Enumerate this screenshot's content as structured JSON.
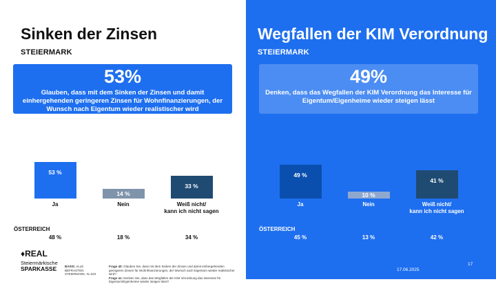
{
  "left": {
    "title": "Sinken der Zinsen",
    "region": "STEIERMARK",
    "callout_value": "53%",
    "callout_text": "Glauben, dass mit dem Sinken der Zinsen und damit einhergehenden geringeren Zinsen für Wohnfinanzierungen, der Wunsch nach Eigentum wieder realistischer wird",
    "oesterreich_label": "ÖSTERREICH"
  },
  "right": {
    "title": "Wegfallen der KIM Verordnung",
    "region": "STEIERMARK",
    "callout_value": "49%",
    "callout_text": "Denken, dass das Wegfallen der KIM Verordnung das Interesse für Eigentum/Eigenheime wieder steigen lässt",
    "oesterreich_label": "ÖSTERREICH"
  },
  "chart_data": [
    {
      "type": "bar",
      "categories": [
        "Ja",
        "Nein",
        "Weiß nicht/\nkann ich nicht sagen"
      ],
      "values": [
        53,
        14,
        33
      ],
      "value_labels": [
        "53 %",
        "14 %",
        "33 %"
      ],
      "colors": [
        "#1e6fef",
        "#7f93ab",
        "#1f4a72"
      ],
      "ylim": [
        0,
        100
      ],
      "comparison_label": "ÖSTERREICH",
      "comparison_values": [
        48,
        18,
        34
      ],
      "comparison_labels": [
        "48 %",
        "18 %",
        "34 %"
      ]
    },
    {
      "type": "bar",
      "categories": [
        "Ja",
        "Nein",
        "Weiß nicht/\nkann ich nicht sagen"
      ],
      "values": [
        49,
        10,
        41
      ],
      "value_labels": [
        "49 %",
        "10 %",
        "41 %"
      ],
      "colors": [
        "#0a4fae",
        "#8fa8cf",
        "#1f4a72"
      ],
      "ylim": [
        0,
        100
      ],
      "comparison_label": "ÖSTERREICH",
      "comparison_values": [
        45,
        13,
        42
      ],
      "comparison_labels": [
        "45 %",
        "13 %",
        "42 %"
      ]
    }
  ],
  "footer": {
    "logo_s": "♦REAL",
    "logo_line1": "Steiermärkische",
    "logo_line2": "SPARKASSE",
    "basis_label": "BASIS:",
    "basis_text": "ALLE BEFRAGTEN STEIERMARK, N=223",
    "frage1_label": "Frage 40:",
    "frage1_text": "Glauben Sie, dass mit dem Sinken der Zinsen und damit einhergehenden geringeren Zinsen für Wohnfinanzierungen, der Wunsch nach Eigentum wieder realistischer wird?",
    "frage2_label": "Frage 41:",
    "frage2_text": "Denken Sie, dass das Wegfallen der KIM Verordnung das Interesse für Eigentum/Eigenheime wieder steigen lässt?",
    "date": "17.06.2025",
    "page": "17"
  }
}
